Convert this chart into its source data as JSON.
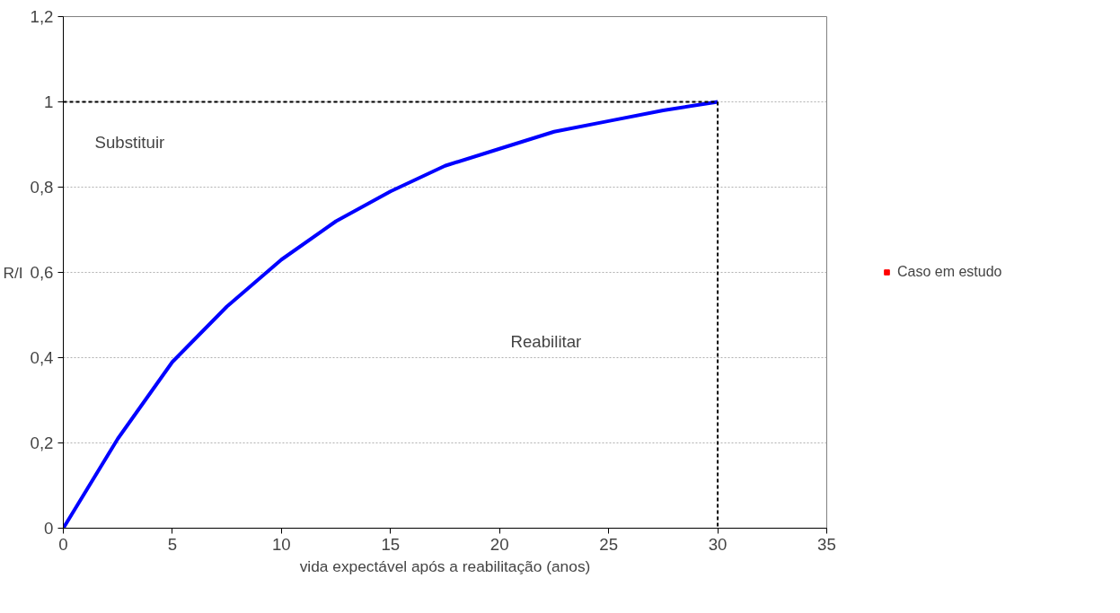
{
  "chart_data": {
    "type": "line",
    "xlabel": "vida expectável após a reabilitação (anos)",
    "ylabel": "R/I",
    "xlim": [
      0,
      35
    ],
    "ylim": [
      0,
      1.2
    ],
    "xticks": [
      0,
      5,
      10,
      15,
      20,
      25,
      30,
      35
    ],
    "yticks": [
      0,
      {
        "value": 0.2,
        "label": "0,2"
      },
      {
        "value": 0.4,
        "label": "0,4"
      },
      {
        "value": 0.6,
        "label": "0,6"
      },
      {
        "value": 0.8,
        "label": "0,8"
      },
      1,
      {
        "value": 1.2,
        "label": "1,2"
      }
    ],
    "grid": "y",
    "legend": "right",
    "series": [
      {
        "type": "line",
        "color": "#0000ff",
        "x": [
          0,
          2.5,
          5,
          7.5,
          10,
          12.5,
          15,
          17.5,
          20,
          22.5,
          25,
          27.5,
          30
        ],
        "values": [
          0,
          0.21,
          0.39,
          0.52,
          0.63,
          0.72,
          0.79,
          0.85,
          0.89,
          0.93,
          0.955,
          0.98,
          1.0
        ]
      },
      {
        "type": "line",
        "color": "#000000",
        "line_style": "dashed",
        "x": [
          0,
          30
        ],
        "values": [
          1,
          1
        ]
      },
      {
        "type": "line",
        "color": "#000000",
        "line_style": "dashed",
        "x": [
          30,
          30
        ],
        "values": [
          1,
          0
        ]
      },
      {
        "type": "scatter",
        "name": "Caso em estudo",
        "color": "#ff0000",
        "marker": "square"
      }
    ],
    "annotations": [
      "Substituir",
      "Reabilitar"
    ]
  }
}
